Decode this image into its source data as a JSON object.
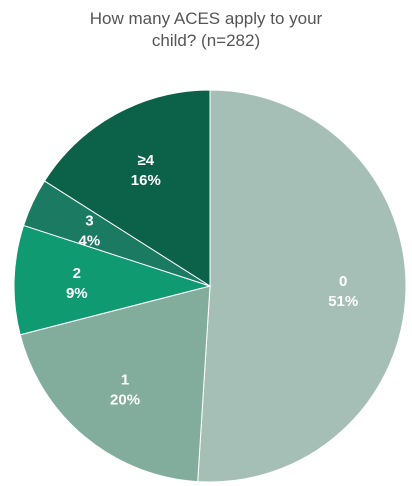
{
  "chart_data": {
    "type": "pie",
    "title_line1": "How many ACES apply to your",
    "title_line2": "child? (n=282)",
    "slices": [
      {
        "label": "0",
        "value": 51,
        "value_label": "51%",
        "color": "#a6bfb6"
      },
      {
        "label": "1",
        "value": 20,
        "value_label": "20%",
        "color": "#82ad9c"
      },
      {
        "label": "2",
        "value": 9,
        "value_label": "9%",
        "color": "#0f9a72"
      },
      {
        "label": "3",
        "value": 4,
        "value_label": "4%",
        "color": "#1a7a62"
      },
      {
        "label": "≥4",
        "value": 16,
        "value_label": "16%",
        "color": "#0b6248"
      }
    ],
    "start_angle_deg": 0,
    "direction": "clockwise"
  }
}
